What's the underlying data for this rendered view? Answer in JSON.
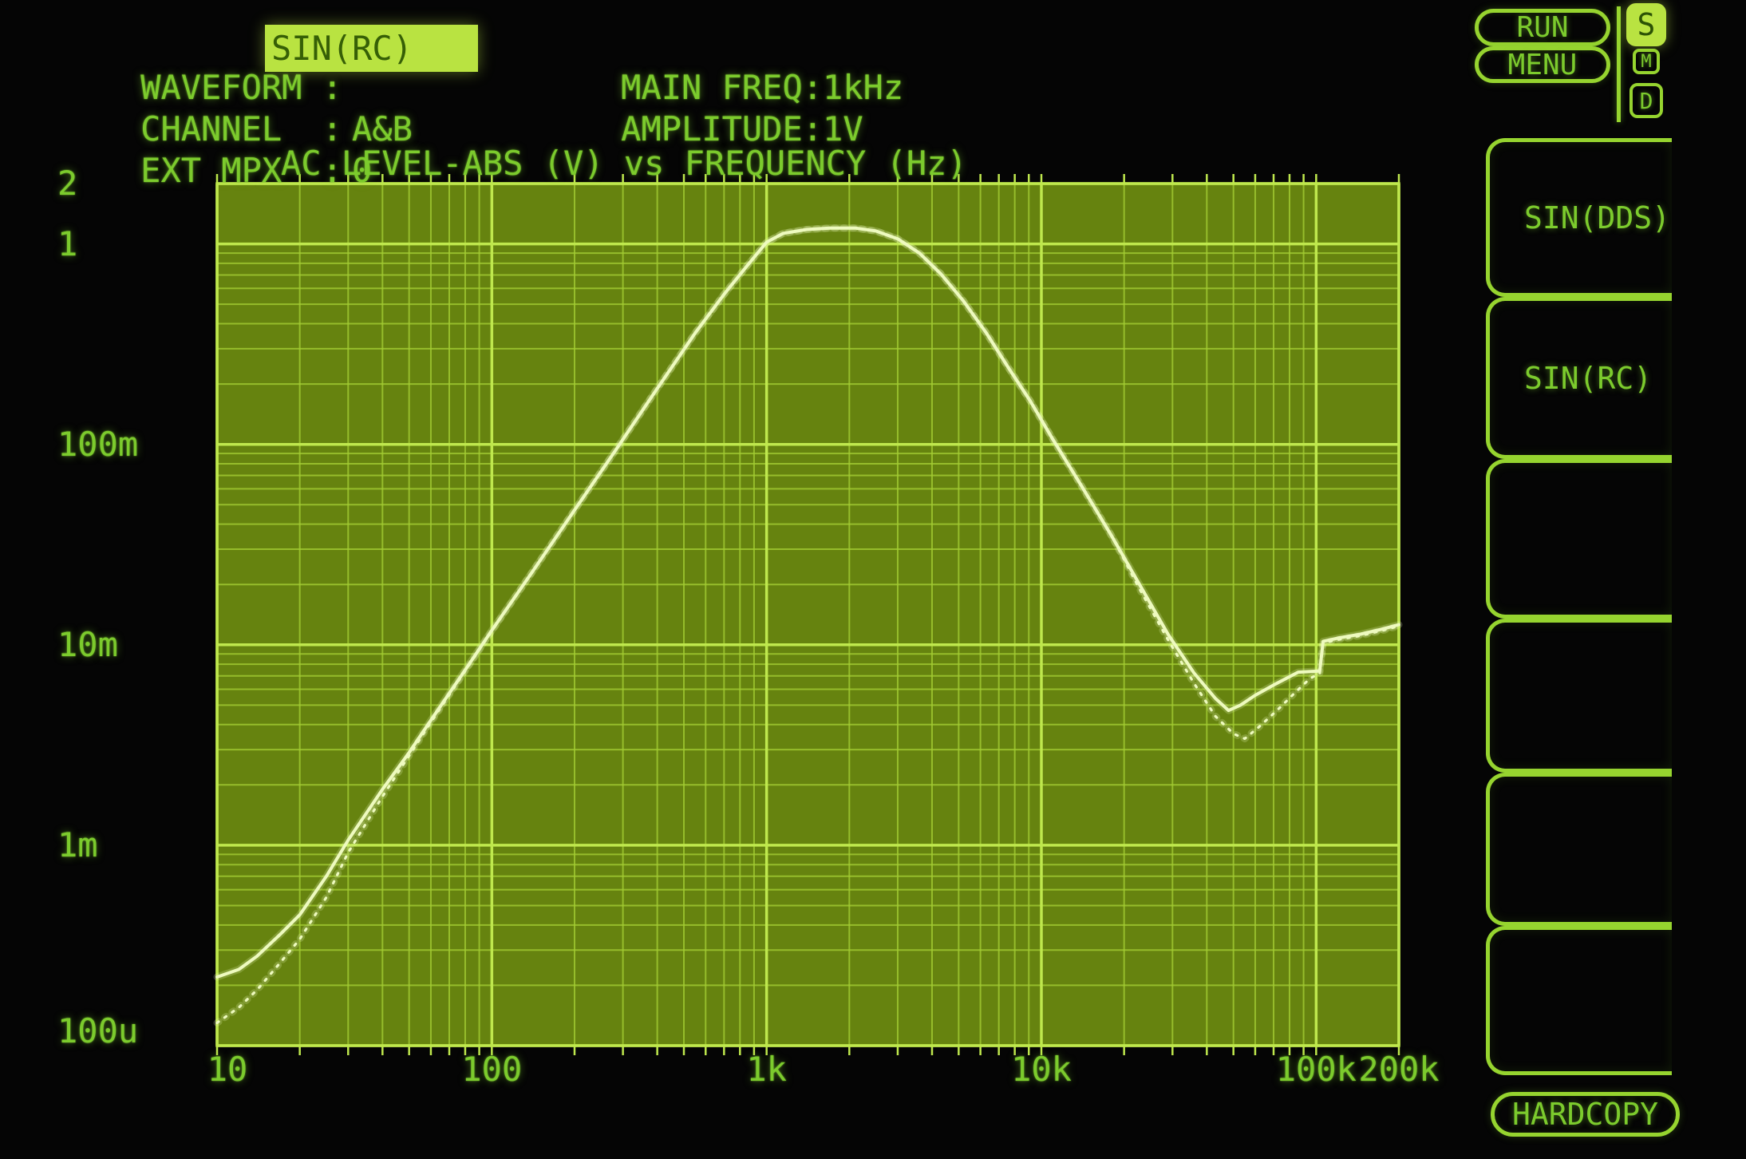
{
  "header": {
    "rows": [
      {
        "label": "WAVEFORM :",
        "value": "SIN(RC)",
        "highlighted": true
      },
      {
        "label": "CHANNEL  :",
        "value": "A&B",
        "highlighted": false
      },
      {
        "label": "EXT MPX  :",
        "value": "0",
        "highlighted": false
      }
    ],
    "right_rows": [
      {
        "label": "MAIN FREQ:",
        "value": "1kHz"
      },
      {
        "label": "AMPLITUDE:",
        "value": "1V"
      }
    ],
    "run_label": "RUN",
    "menu_label": "MENU",
    "mode_badges": [
      {
        "letter": "S",
        "active": true
      },
      {
        "letter": "M",
        "active": false
      },
      {
        "letter": "D",
        "active": false
      }
    ]
  },
  "softkeys": {
    "items": [
      {
        "label": "SIN(DDS)"
      },
      {
        "label": "SIN(RC)"
      },
      {
        "label": ""
      },
      {
        "label": ""
      },
      {
        "label": ""
      },
      {
        "label": ""
      }
    ],
    "hardcopy_label": "HARDCOPY"
  },
  "chart_data": {
    "type": "line",
    "title": "AC LEVEL-ABS (V) vs FREQUENCY (Hz)",
    "x_axis": {
      "label": "FREQUENCY (Hz)",
      "scale": "log",
      "min": 10,
      "max": 200000,
      "ticks": [
        {
          "label": "10",
          "value": 10
        },
        {
          "label": "100",
          "value": 100
        },
        {
          "label": "1k",
          "value": 1000
        },
        {
          "label": "10k",
          "value": 10000
        },
        {
          "label": "100k",
          "value": 100000
        },
        {
          "label": "200k",
          "value": 200000
        }
      ],
      "grid": "log-minor"
    },
    "y_axis": {
      "label": "AC LEVEL-ABS (V)",
      "scale": "log",
      "min": 0.0001,
      "max": 2,
      "ticks": [
        {
          "label": "2",
          "value": 2
        },
        {
          "label": "1",
          "value": 1
        },
        {
          "label": "100m",
          "value": 0.1
        },
        {
          "label": "10m",
          "value": 0.01
        },
        {
          "label": "1m",
          "value": 0.001
        },
        {
          "label": "100u",
          "value": 0.0001
        }
      ],
      "grid": "log-minor"
    },
    "series": [
      {
        "name": "channel-A",
        "style": "solid",
        "points": [
          [
            10,
            0.00022
          ],
          [
            12,
            0.00024
          ],
          [
            14,
            0.00028
          ],
          [
            17,
            0.00036
          ],
          [
            20,
            0.00045
          ],
          [
            25,
            0.0007
          ],
          [
            30,
            0.00106
          ],
          [
            40,
            0.0019
          ],
          [
            50,
            0.0029
          ],
          [
            60,
            0.0042
          ],
          [
            80,
            0.0075
          ],
          [
            100,
            0.0118
          ],
          [
            140,
            0.023
          ],
          [
            200,
            0.047
          ],
          [
            280,
            0.092
          ],
          [
            400,
            0.19
          ],
          [
            550,
            0.36
          ],
          [
            700,
            0.56
          ],
          [
            850,
            0.78
          ],
          [
            1000,
            1.02
          ],
          [
            1150,
            1.13
          ],
          [
            1400,
            1.18
          ],
          [
            1700,
            1.2
          ],
          [
            2100,
            1.2
          ],
          [
            2500,
            1.16
          ],
          [
            3000,
            1.06
          ],
          [
            3600,
            0.9
          ],
          [
            4300,
            0.71
          ],
          [
            5200,
            0.52
          ],
          [
            6300,
            0.36
          ],
          [
            7600,
            0.24
          ],
          [
            9100,
            0.165
          ],
          [
            11000,
            0.106
          ],
          [
            14000,
            0.062
          ],
          [
            18000,
            0.035
          ],
          [
            23000,
            0.0195
          ],
          [
            29000,
            0.0112
          ],
          [
            36000,
            0.0072
          ],
          [
            43000,
            0.0054
          ],
          [
            48000,
            0.0047
          ],
          [
            53000,
            0.005
          ],
          [
            60000,
            0.0056
          ],
          [
            70000,
            0.0063
          ],
          [
            86000,
            0.0073
          ],
          [
            103000,
            0.0074
          ],
          [
            106000,
            0.0104
          ],
          [
            120000,
            0.0108
          ],
          [
            145000,
            0.0113
          ],
          [
            175000,
            0.012
          ],
          [
            200000,
            0.0126
          ]
        ]
      },
      {
        "name": "channel-B",
        "style": "dotted",
        "points": [
          [
            10,
            0.00013
          ],
          [
            12,
            0.000155
          ],
          [
            14,
            0.00019
          ],
          [
            17,
            0.00026
          ],
          [
            20,
            0.00034
          ],
          [
            25,
            0.00055
          ],
          [
            30,
            0.00092
          ],
          [
            40,
            0.00175
          ],
          [
            50,
            0.0028
          ],
          [
            60,
            0.0041
          ],
          [
            80,
            0.0074
          ],
          [
            100,
            0.0117
          ],
          [
            140,
            0.023
          ],
          [
            200,
            0.047
          ],
          [
            280,
            0.092
          ],
          [
            400,
            0.19
          ],
          [
            550,
            0.36
          ],
          [
            700,
            0.56
          ],
          [
            850,
            0.78
          ],
          [
            1000,
            1.02
          ],
          [
            1150,
            1.13
          ],
          [
            1400,
            1.18
          ],
          [
            1700,
            1.2
          ],
          [
            2100,
            1.2
          ],
          [
            2500,
            1.16
          ],
          [
            3000,
            1.06
          ],
          [
            3600,
            0.9
          ],
          [
            4300,
            0.71
          ],
          [
            5200,
            0.52
          ],
          [
            6300,
            0.36
          ],
          [
            7600,
            0.24
          ],
          [
            9100,
            0.165
          ],
          [
            11000,
            0.106
          ],
          [
            14000,
            0.062
          ],
          [
            18000,
            0.035
          ],
          [
            23000,
            0.0185
          ],
          [
            29000,
            0.0105
          ],
          [
            36000,
            0.0064
          ],
          [
            43000,
            0.0044
          ],
          [
            50000,
            0.0036
          ],
          [
            55000,
            0.0034
          ],
          [
            62000,
            0.0039
          ],
          [
            72000,
            0.0047
          ],
          [
            83000,
            0.0057
          ],
          [
            95000,
            0.0068
          ],
          [
            103000,
            0.0072
          ],
          [
            106000,
            0.0102
          ],
          [
            120000,
            0.0106
          ],
          [
            145000,
            0.0111
          ],
          [
            175000,
            0.0118
          ],
          [
            200000,
            0.0124
          ]
        ]
      }
    ],
    "legend": "none",
    "colors": {
      "background": "#050505",
      "plot_fill": "#66830f",
      "grid_minor": "#a3cc33",
      "grid_major": "#bfe84d",
      "trace": "#eefabf",
      "text_green": "#7ccb2d",
      "highlight_bg": "#b9e341",
      "highlight_text": "#365f06"
    }
  }
}
